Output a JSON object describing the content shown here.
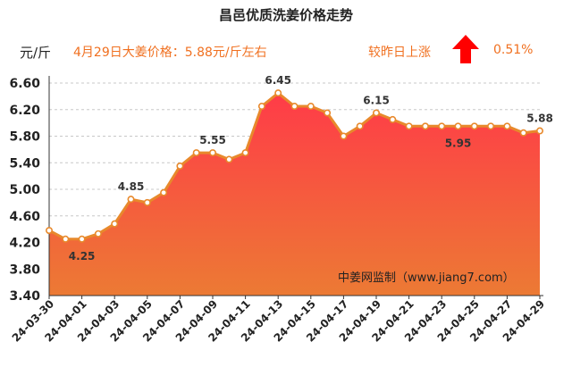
{
  "header": {
    "title": "昌邑优质洗姜价格走势",
    "unit": "元/斤",
    "price_text": "4月29日大姜价格：5.88元/斤左右",
    "compare_text": "较昨日上涨",
    "change_pct": "0.51%",
    "trend_icon": "red-up-arrow-icon"
  },
  "watermark": "中姜网监制（www.jiang7.com）",
  "colors": {
    "line": "#e8892c",
    "fill_top": "#ff3b48",
    "fill_bottom": "#ec7a34",
    "accent_text": "#f07020",
    "arrow": "#ff0000"
  },
  "chart_data": {
    "type": "area",
    "x": [
      "24-03-30",
      "24-03-31",
      "24-04-01",
      "24-04-02",
      "24-04-03",
      "24-04-04",
      "24-04-05",
      "24-04-06",
      "24-04-07",
      "24-04-08",
      "24-04-09",
      "24-04-10",
      "24-04-11",
      "24-04-12",
      "24-04-13",
      "24-04-14",
      "24-04-15",
      "24-04-16",
      "24-04-17",
      "24-04-18",
      "24-04-19",
      "24-04-20",
      "24-04-21",
      "24-04-22",
      "24-04-23",
      "24-04-24",
      "24-04-25",
      "24-04-26",
      "24-04-27",
      "24-04-28",
      "24-04-29"
    ],
    "x_tick_labels": [
      "24-03-30",
      "24-04-01",
      "24-04-03",
      "24-04-05",
      "24-04-07",
      "24-04-09",
      "24-04-11",
      "24-04-13",
      "24-04-15",
      "24-04-17",
      "24-04-19",
      "24-04-21",
      "24-04-23",
      "24-04-25",
      "24-04-27",
      "24-04-29"
    ],
    "values": [
      4.38,
      4.25,
      4.25,
      4.33,
      4.48,
      4.85,
      4.8,
      4.95,
      5.35,
      5.55,
      5.55,
      5.45,
      5.55,
      6.25,
      6.45,
      6.25,
      6.25,
      6.15,
      5.8,
      5.95,
      6.15,
      6.05,
      5.95,
      5.95,
      5.95,
      5.95,
      5.95,
      5.95,
      5.95,
      5.85,
      5.88
    ],
    "data_labels": [
      {
        "x": "24-04-01",
        "text": "4.25"
      },
      {
        "x": "24-04-04",
        "text": "4.85"
      },
      {
        "x": "24-04-09",
        "text": "5.55"
      },
      {
        "x": "24-04-13",
        "text": "6.45"
      },
      {
        "x": "24-04-19",
        "text": "6.15"
      },
      {
        "x": "24-04-24",
        "text": "5.95"
      },
      {
        "x": "24-04-29",
        "text": "5.88"
      }
    ],
    "y_ticks": [
      "3.40",
      "3.80",
      "4.20",
      "4.60",
      "5.00",
      "5.40",
      "5.80",
      "6.20",
      "6.60"
    ],
    "ylim": [
      3.4,
      6.6
    ],
    "grid": "horizontal-dashed",
    "legend": "none",
    "ylabel": "元/斤"
  }
}
